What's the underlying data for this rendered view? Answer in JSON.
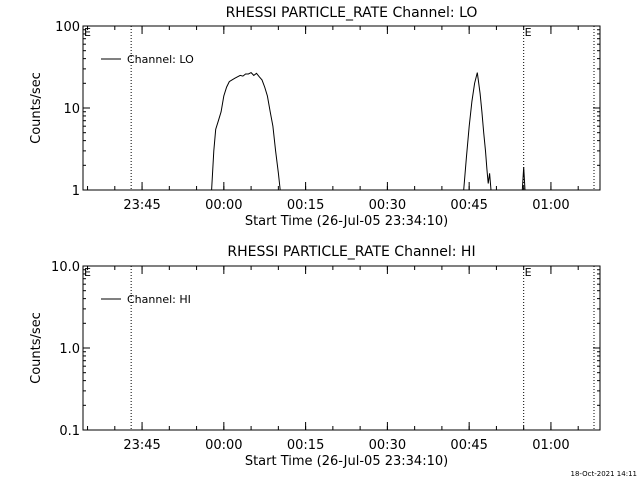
{
  "footer_timestamp": "18-Oct-2021 14:11",
  "chart_data": [
    {
      "type": "line",
      "title": "RHESSI PARTICLE_RATE Channel: LO",
      "xlabel": "Start Time (26-Jul-05 23:34:10)",
      "ylabel": "Counts/sec",
      "yscale": "log",
      "ylim": [
        1,
        100
      ],
      "xlim": [
        "23:34:10",
        "01:09:00"
      ],
      "y_ticks": [
        {
          "value": 1,
          "label": "1"
        },
        {
          "value": 10,
          "label": "10"
        },
        {
          "value": 100,
          "label": "100"
        }
      ],
      "x_ticks": [
        {
          "time": "23:45",
          "label": "23:45"
        },
        {
          "time": "00:00",
          "label": "00:00"
        },
        {
          "time": "00:15",
          "label": "00:15"
        },
        {
          "time": "00:30",
          "label": "00:30"
        },
        {
          "time": "00:45",
          "label": "00:45"
        },
        {
          "time": "01:00",
          "label": "01:00"
        }
      ],
      "vlines": [
        "23:43:00",
        "00:55:00",
        "01:10:00"
      ],
      "markers": [
        {
          "time": "00:55:00",
          "label": "E"
        }
      ],
      "corner_label": "E",
      "legend": {
        "position": "top-left",
        "entries": [
          "Channel: LO"
        ]
      },
      "series": [
        {
          "name": "Channel: LO",
          "segments": [
            [
              [
                "23:57:45",
                1.0
              ],
              [
                "23:58:10",
                3.0
              ],
              [
                "23:58:30",
                5.5
              ],
              [
                "23:59:00",
                7.0
              ],
              [
                "23:59:30",
                9.0
              ],
              [
                "00:00:00",
                14.0
              ],
              [
                "00:00:30",
                18.0
              ],
              [
                "00:01:00",
                21.0
              ],
              [
                "00:01:30",
                22.0
              ],
              [
                "00:02:00",
                23.0
              ],
              [
                "00:02:30",
                24.0
              ],
              [
                "00:03:00",
                25.0
              ],
              [
                "00:03:30",
                24.5
              ],
              [
                "00:04:00",
                26.0
              ],
              [
                "00:04:30",
                26.0
              ],
              [
                "00:05:00",
                27.0
              ],
              [
                "00:05:30",
                25.0
              ],
              [
                "00:06:00",
                26.5
              ],
              [
                "00:06:30",
                24.0
              ],
              [
                "00:07:00",
                22.0
              ],
              [
                "00:07:30",
                18.0
              ],
              [
                "00:08:00",
                14.0
              ],
              [
                "00:08:30",
                9.0
              ],
              [
                "00:09:00",
                6.0
              ],
              [
                "00:09:30",
                3.0
              ],
              [
                "00:10:00",
                1.6
              ],
              [
                "00:10:20",
                1.0
              ]
            ],
            [
              [
                "00:44:00",
                1.0
              ],
              [
                "00:44:30",
                2.5
              ],
              [
                "00:45:00",
                6.0
              ],
              [
                "00:45:30",
                12.0
              ],
              [
                "00:46:00",
                20.0
              ],
              [
                "00:46:30",
                27.0
              ],
              [
                "00:47:00",
                15.0
              ],
              [
                "00:47:20",
                9.0
              ],
              [
                "00:47:40",
                5.0
              ],
              [
                "00:48:00",
                3.0
              ],
              [
                "00:48:15",
                1.8
              ],
              [
                "00:48:30",
                1.2
              ],
              [
                "00:48:45",
                1.6
              ],
              [
                "00:49:00",
                1.0
              ]
            ],
            [
              [
                "00:54:45",
                1.0
              ],
              [
                "00:55:00",
                1.9
              ],
              [
                "00:55:15",
                1.0
              ]
            ]
          ]
        }
      ]
    },
    {
      "type": "line",
      "title": "RHESSI PARTICLE_RATE Channel: HI",
      "xlabel": "Start Time (26-Jul-05 23:34:10)",
      "ylabel": "Counts/sec",
      "yscale": "log",
      "ylim": [
        0.1,
        10
      ],
      "xlim": [
        "23:34:10",
        "01:09:00"
      ],
      "y_ticks": [
        {
          "value": 0.1,
          "label": "0.1"
        },
        {
          "value": 1,
          "label": "1.0"
        },
        {
          "value": 10,
          "label": "10.0"
        }
      ],
      "x_ticks": [
        {
          "time": "23:45",
          "label": "23:45"
        },
        {
          "time": "00:00",
          "label": "00:00"
        },
        {
          "time": "00:15",
          "label": "00:15"
        },
        {
          "time": "00:30",
          "label": "00:30"
        },
        {
          "time": "00:45",
          "label": "00:45"
        },
        {
          "time": "01:00",
          "label": "01:00"
        }
      ],
      "vlines": [
        "23:43:00",
        "00:55:00",
        "01:10:00"
      ],
      "markers": [
        {
          "time": "00:55:00",
          "label": "E"
        }
      ],
      "corner_label": "E",
      "legend": {
        "position": "top-left",
        "entries": [
          "Channel: HI"
        ]
      },
      "series": [
        {
          "name": "Channel: HI",
          "segments": []
        }
      ]
    }
  ]
}
